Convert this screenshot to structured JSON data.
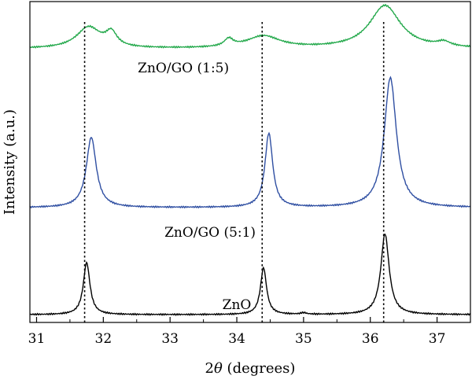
{
  "chart_data": {
    "type": "line",
    "title": "",
    "xlabel_prefix": "2",
    "xlabel_symbol": "θ",
    "xlabel_suffix": " (degrees)",
    "ylabel": "Intensity (a.u.)",
    "xlim": [
      30.9,
      37.5
    ],
    "x_ticks": [
      "31",
      "32",
      "33",
      "34",
      "35",
      "36",
      "37"
    ],
    "y_ticks_shown": false,
    "grid": false,
    "legend": "none",
    "reference_lines_x": [
      31.72,
      34.38,
      36.2
    ],
    "reference_line_style": "dotted",
    "series": [
      {
        "name": "ZnO",
        "color": "#000000",
        "label_x": 34.0,
        "baseline": 0.03,
        "peaks": [
          {
            "x": 31.75,
            "h": 0.69,
            "w": 0.06
          },
          {
            "x": 34.4,
            "h": 0.62,
            "w": 0.055
          },
          {
            "x": 35.0,
            "h": 0.02,
            "w": 0.05
          },
          {
            "x": 36.22,
            "h": 1.07,
            "w": 0.075
          }
        ]
      },
      {
        "name": "ZnO/GO (5:1)",
        "color": "#2f4fa2",
        "label_x": 33.6,
        "baseline": 0.02,
        "peaks": [
          {
            "x": 31.82,
            "h": 0.93,
            "w": 0.09
          },
          {
            "x": 34.48,
            "h": 0.98,
            "w": 0.07
          },
          {
            "x": 36.3,
            "h": 1.72,
            "w": 0.11
          }
        ]
      },
      {
        "name": "ZnO/GO (1:5)",
        "color": "#22a84a",
        "label_x": 33.2,
        "baseline": 0.01,
        "peaks": [
          {
            "x": 31.78,
            "h": 0.28,
            "w": 0.22
          },
          {
            "x": 32.12,
            "h": 0.18,
            "w": 0.1
          },
          {
            "x": 33.88,
            "h": 0.1,
            "w": 0.08
          },
          {
            "x": 34.4,
            "h": 0.16,
            "w": 0.3
          },
          {
            "x": 36.22,
            "h": 0.57,
            "w": 0.28
          },
          {
            "x": 37.1,
            "h": 0.06,
            "w": 0.12
          }
        ]
      }
    ]
  }
}
